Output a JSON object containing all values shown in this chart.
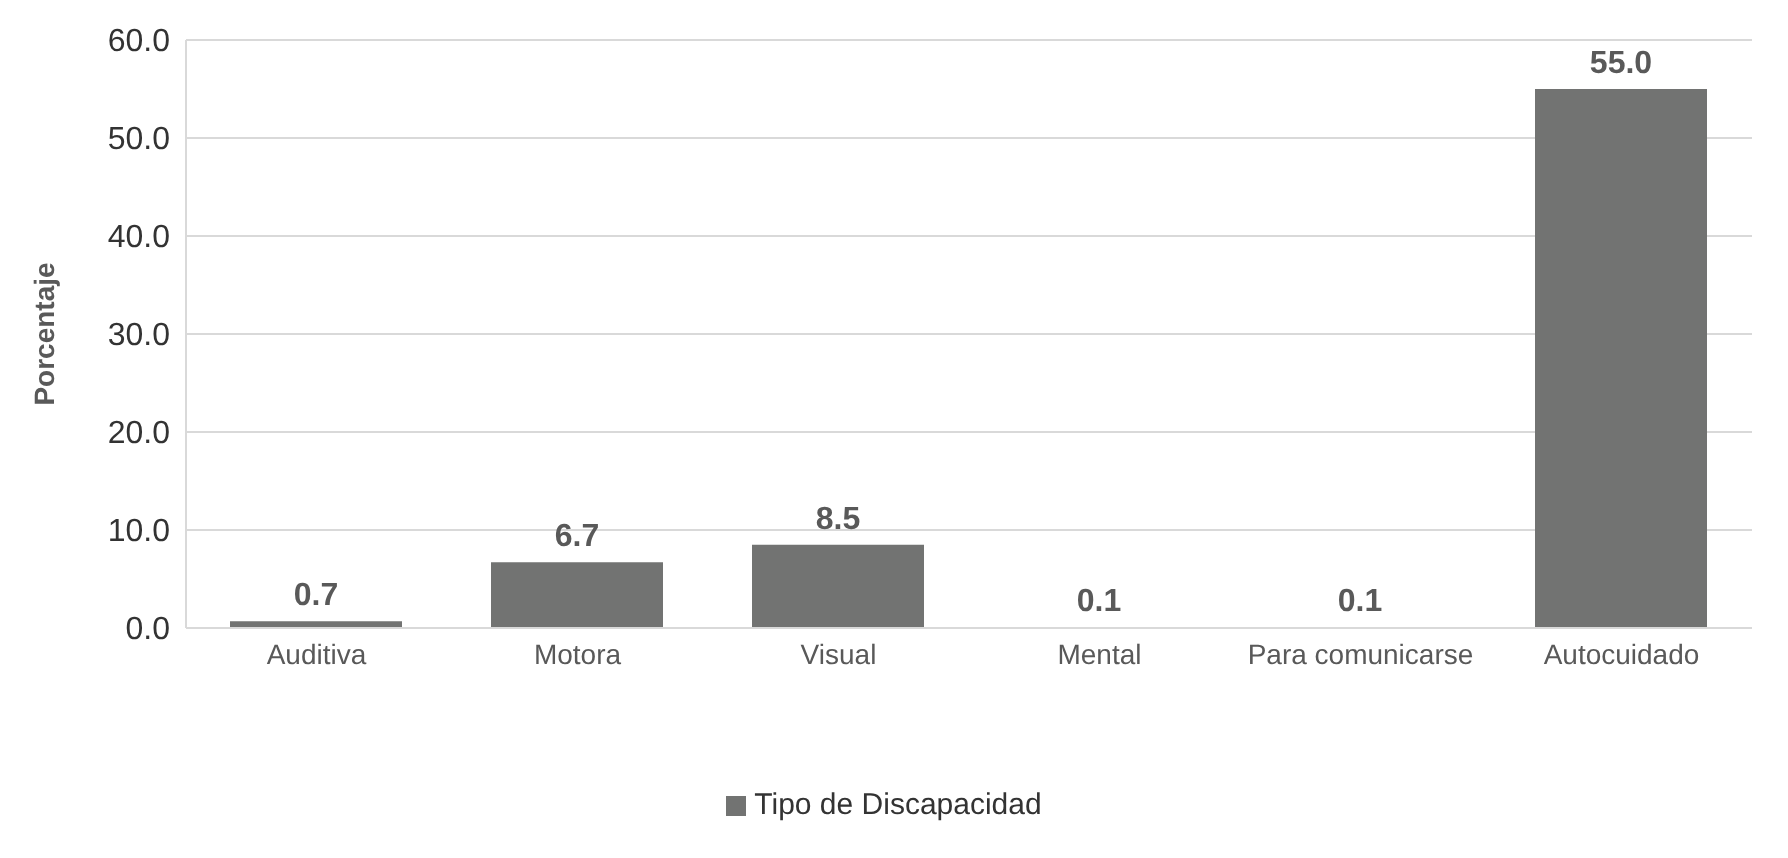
{
  "chart_data": {
    "type": "bar",
    "ylabel": "Porcentaje",
    "categories": [
      "Auditiva",
      "Motora",
      "Visual",
      "Mental",
      "Para comunicarse",
      "Autocuidado"
    ],
    "series": [
      {
        "name": "Tipo de Discapacidad",
        "color": "#727372",
        "values": [
          0.7,
          6.7,
          8.5,
          0.1,
          0.1,
          55.0
        ],
        "value_labels": [
          "0.7",
          "6.7",
          "8.5",
          "0.1",
          "0.1",
          "55.0"
        ]
      }
    ],
    "ylim": [
      0,
      60
    ],
    "yticks": [
      {
        "value": 0,
        "label": "0.0"
      },
      {
        "value": 10,
        "label": "10.0"
      },
      {
        "value": 20,
        "label": "20.0"
      },
      {
        "value": 30,
        "label": "30.0"
      },
      {
        "value": 40,
        "label": "40.0"
      },
      {
        "value": 50,
        "label": "50.0"
      },
      {
        "value": 60,
        "label": "60.0"
      }
    ],
    "grid": "y",
    "legend": "bottom"
  }
}
